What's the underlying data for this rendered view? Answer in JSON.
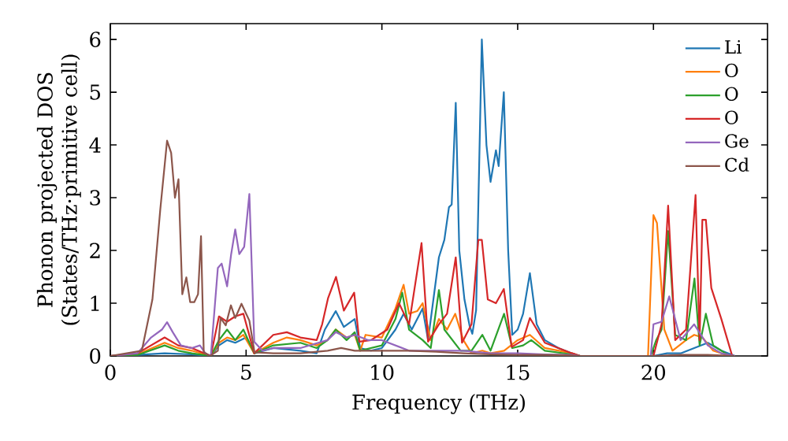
{
  "chart_data": {
    "type": "line",
    "xlabel": "Frequency (THz)",
    "ylabel": "Phonon projected DOS (States/THz·primitive cell)",
    "xlim": [
      0,
      24.2
    ],
    "ylim": [
      0,
      6.3
    ],
    "xticks": [
      0,
      5,
      10,
      15,
      20
    ],
    "yticks": [
      0,
      1,
      2,
      3,
      4,
      5,
      6
    ],
    "legend": "top right",
    "series": [
      {
        "name": "Li",
        "color": "#1f77b4",
        "x": [
          0,
          1,
          2,
          3,
          3.7,
          4,
          4.3,
          4.6,
          5,
          5.3,
          6,
          7,
          7.6,
          7.9,
          8.3,
          8.6,
          9.0,
          9.2,
          9.6,
          10.0,
          10.5,
          10.8,
          11.1,
          11.5,
          11.7,
          12.1,
          12.3,
          12.47,
          12.57,
          12.72,
          12.85,
          13.04,
          13.23,
          13.33,
          13.47,
          13.68,
          13.85,
          14.0,
          14.2,
          14.3,
          14.49,
          14.65,
          14.8,
          15.0,
          15.2,
          15.45,
          15.7,
          16.0,
          16.5,
          17,
          17.3,
          20,
          20.5,
          21,
          21.5,
          22,
          22.5,
          23
        ],
        "values": [
          0,
          0.02,
          0.05,
          0.03,
          0,
          0.2,
          0.3,
          0.25,
          0.35,
          0.05,
          0.15,
          0.1,
          0.05,
          0.5,
          0.85,
          0.55,
          0.7,
          0.15,
          0.1,
          0.15,
          0.5,
          0.8,
          0.5,
          0.9,
          0.3,
          1.87,
          2.2,
          2.82,
          2.87,
          4.8,
          2.0,
          1.07,
          0.57,
          0.42,
          0.87,
          6.0,
          4.0,
          3.3,
          3.9,
          3.6,
          5.0,
          2.0,
          0.4,
          0.5,
          0.8,
          1.57,
          0.6,
          0.3,
          0.15,
          0.05,
          0,
          0,
          0.05,
          0.05,
          0.15,
          0.25,
          0.1,
          0
        ]
      },
      {
        "name": "O",
        "color": "#ff7f0e",
        "x": [
          0,
          1,
          2,
          2.5,
          3,
          3.7,
          4,
          4.3,
          4.6,
          4.9,
          5.3,
          6,
          6.5,
          7,
          7.6,
          8.0,
          8.3,
          8.7,
          9.0,
          9.2,
          9.4,
          10.0,
          10.5,
          10.8,
          11.0,
          11.3,
          11.5,
          11.8,
          12.1,
          12.4,
          12.7,
          13.0,
          13.3,
          13.7,
          14.0,
          14.5,
          15.0,
          15.45,
          16,
          17,
          17.3,
          19.8,
          20.0,
          20.13,
          20.4,
          20.7,
          21.2,
          21.5,
          21.8,
          22.2,
          22.8
        ],
        "values": [
          0,
          0.03,
          0.25,
          0.15,
          0.1,
          0,
          0.25,
          0.35,
          0.3,
          0.4,
          0.05,
          0.25,
          0.35,
          0.3,
          0.2,
          0.3,
          0.5,
          0.35,
          0.4,
          0.1,
          0.4,
          0.35,
          0.9,
          1.35,
          0.8,
          0.85,
          1.0,
          0.3,
          0.7,
          0.5,
          0.8,
          0.3,
          0.05,
          0.1,
          0.05,
          0.1,
          0.3,
          0.4,
          0.15,
          0.05,
          0,
          0,
          2.67,
          2.52,
          0.5,
          0.1,
          0.3,
          0.4,
          0.35,
          0.1,
          0
        ]
      },
      {
        "name": "O",
        "color": "#2ca02c",
        "x": [
          0,
          1,
          2,
          2.5,
          3,
          3.7,
          4,
          4.3,
          4.6,
          4.9,
          5.3,
          6,
          7,
          7.6,
          8.0,
          8.3,
          8.7,
          9.0,
          9.2,
          10,
          10.5,
          10.75,
          11.0,
          11.5,
          11.8,
          12.1,
          12.3,
          12.6,
          12.9,
          13.3,
          13.7,
          14.0,
          14.5,
          14.8,
          15.2,
          15.5,
          16,
          17,
          17.3,
          19.9,
          20.1,
          20.3,
          20.54,
          20.8,
          21.2,
          21.51,
          21.7,
          21.93,
          22.2,
          22.8
        ],
        "values": [
          0,
          0.02,
          0.2,
          0.1,
          0.05,
          0,
          0.3,
          0.5,
          0.3,
          0.5,
          0.05,
          0.2,
          0.25,
          0.15,
          0.3,
          0.5,
          0.3,
          0.45,
          0.1,
          0.2,
          0.7,
          1.2,
          0.5,
          0.3,
          0.15,
          1.25,
          0.5,
          0.3,
          0.1,
          0.1,
          0.4,
          0.1,
          0.8,
          0.15,
          0.2,
          0.3,
          0.1,
          0.03,
          0,
          0,
          0.3,
          0.5,
          2.37,
          0.4,
          0.3,
          1.47,
          0.2,
          0.8,
          0.2,
          0
        ]
      },
      {
        "name": "O",
        "color": "#d62728",
        "x": [
          0,
          1,
          2,
          2.5,
          3,
          3.7,
          4,
          4.3,
          4.6,
          4.9,
          5.3,
          6,
          6.5,
          7,
          7.6,
          7.8,
          8.02,
          8.31,
          8.6,
          8.98,
          9.17,
          9.6,
          10.2,
          10.63,
          11.0,
          11.46,
          11.7,
          12.1,
          12.4,
          12.72,
          12.95,
          13.3,
          13.55,
          13.68,
          13.9,
          14.2,
          14.49,
          14.78,
          15.2,
          15.45,
          16,
          17,
          17.3,
          20.0,
          20.3,
          20.54,
          20.8,
          21.2,
          21.55,
          21.7,
          21.8,
          21.93,
          22.13,
          22.5,
          22.9
        ],
        "values": [
          0,
          0.05,
          0.35,
          0.2,
          0.15,
          0,
          0.75,
          0.65,
          0.75,
          0.8,
          0.05,
          0.4,
          0.45,
          0.35,
          0.3,
          0.6,
          1.1,
          1.5,
          0.86,
          1.2,
          0.27,
          0.3,
          0.5,
          1.0,
          0.6,
          2.14,
          0.27,
          0.6,
          0.8,
          1.87,
          0.25,
          0.6,
          2.2,
          2.2,
          1.07,
          1.0,
          1.27,
          0.17,
          0.3,
          0.72,
          0.25,
          0.05,
          0,
          0,
          0.6,
          2.85,
          0.3,
          0.5,
          3.05,
          0.3,
          2.58,
          2.58,
          1.29,
          0.7,
          0
        ]
      },
      {
        "name": "Ge",
        "color": "#9467bd",
        "x": [
          0,
          1,
          1.5,
          1.9,
          2.09,
          2.3,
          2.6,
          3.0,
          3.3,
          3.5,
          3.7,
          3.96,
          4.1,
          4.3,
          4.45,
          4.6,
          4.75,
          4.93,
          5.12,
          5.3,
          5.6,
          6,
          7,
          8,
          8.3,
          8.7,
          9,
          9.5,
          10,
          11,
          12,
          13,
          14,
          15,
          16,
          17,
          17.3,
          19.9,
          20.0,
          20.3,
          20.58,
          21.0,
          21.5,
          22.0,
          22.5,
          23
        ],
        "values": [
          0,
          0.05,
          0.35,
          0.5,
          0.64,
          0.45,
          0.2,
          0.15,
          0.2,
          0.05,
          0,
          1.67,
          1.75,
          1.32,
          1.93,
          2.4,
          1.93,
          2.07,
          3.07,
          0.27,
          0.1,
          0.15,
          0.15,
          0.3,
          0.45,
          0.35,
          0.4,
          0.3,
          0.3,
          0.1,
          0.1,
          0.1,
          0.05,
          0.05,
          0.03,
          0.02,
          0,
          0,
          0.6,
          0.65,
          1.13,
          0.3,
          0.6,
          0.2,
          0.05,
          0
        ]
      },
      {
        "name": "Cd",
        "color": "#8c564b",
        "x": [
          0,
          1.16,
          1.55,
          1.84,
          2.09,
          2.24,
          2.38,
          2.51,
          2.65,
          2.8,
          2.94,
          3.09,
          3.23,
          3.34,
          3.44,
          3.67,
          3.96,
          4.06,
          4.25,
          4.44,
          4.6,
          4.83,
          5.12,
          5.31,
          6,
          7,
          8,
          8.5,
          9,
          10,
          11,
          12,
          13,
          14,
          15,
          16,
          17,
          17.3,
          20,
          21,
          22,
          23
        ],
        "values": [
          0,
          0.1,
          1.07,
          2.78,
          4.08,
          3.85,
          3.0,
          3.35,
          1.17,
          1.49,
          1.02,
          1.02,
          1.17,
          2.27,
          0.07,
          0,
          0.1,
          0.72,
          0.58,
          0.96,
          0.72,
          0.99,
          0.67,
          0.07,
          0.05,
          0.05,
          0.1,
          0.15,
          0.1,
          0.1,
          0.1,
          0.08,
          0.05,
          0.03,
          0.02,
          0.02,
          0.01,
          0,
          0,
          0.02,
          0.02,
          0
        ]
      }
    ]
  }
}
